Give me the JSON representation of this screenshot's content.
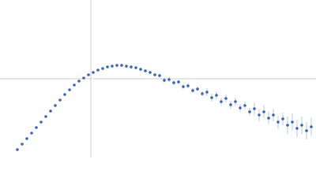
{
  "chart_data": {
    "type": "scatter",
    "color": "#3a64b6",
    "line_color": "#cccccc",
    "xlim": [
      0,
      400
    ],
    "ylim": [
      0,
      200
    ],
    "xline": 115,
    "yline": 100,
    "x": [
      22,
      28,
      34,
      40,
      46,
      52,
      58,
      64,
      70,
      76,
      82,
      88,
      94,
      100,
      106,
      112,
      118,
      124,
      130,
      136,
      142,
      148,
      154,
      160,
      166,
      172,
      178,
      184,
      190,
      196,
      202,
      208,
      214,
      220,
      226,
      232,
      238,
      244,
      250,
      256,
      262,
      268,
      274,
      280,
      286,
      292,
      298,
      304,
      310,
      316,
      322,
      328,
      334,
      340,
      346,
      352,
      358,
      364,
      370,
      376,
      382,
      388,
      394
    ],
    "values": [
      10,
      17,
      24,
      31,
      38,
      45,
      52,
      59,
      66,
      73,
      80,
      86,
      92,
      97,
      101,
      105,
      108,
      111,
      113,
      115,
      116,
      117,
      117,
      116,
      115,
      114,
      112,
      110,
      108,
      105,
      104,
      98,
      99,
      95,
      96,
      90,
      91,
      85,
      87,
      81,
      83,
      76,
      79,
      71,
      75,
      67,
      71,
      63,
      66,
      58,
      62,
      54,
      58,
      50,
      54,
      45,
      49,
      41,
      45,
      37,
      41,
      34,
      39
    ],
    "errors": [
      1,
      1,
      1,
      1,
      1,
      1,
      1,
      1,
      1,
      1,
      1,
      1,
      1,
      1,
      1,
      1,
      1,
      1,
      1,
      1,
      2,
      2,
      2,
      2,
      2,
      2,
      2,
      2,
      2,
      2,
      3,
      3,
      3,
      3,
      3,
      3,
      3,
      3,
      3,
      3,
      5,
      5,
      5,
      5,
      5,
      5,
      5,
      5,
      5,
      5,
      8,
      8,
      8,
      8,
      8,
      8,
      8,
      11,
      11,
      11,
      11,
      11,
      11
    ]
  }
}
